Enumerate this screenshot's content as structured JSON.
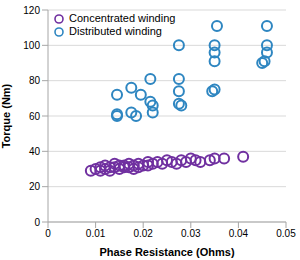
{
  "chart_data": {
    "type": "scatter",
    "x_label": "Phase Resistance (Ohms)",
    "y_label": "Torque (Nm)",
    "xlim": [
      0,
      0.05
    ],
    "xticks": [
      0,
      0.01,
      0.02,
      0.03,
      0.04,
      0.05
    ],
    "ylim": [
      0,
      120
    ],
    "yticks": [
      0,
      20,
      40,
      60,
      80,
      100,
      120
    ],
    "grid": true,
    "legend": "upper left",
    "series": [
      {
        "name": "Concentrated winding",
        "color": "#7030a0",
        "marker": "hollow circle",
        "x": [
          0.009,
          0.01,
          0.011,
          0.011,
          0.012,
          0.012,
          0.013,
          0.013,
          0.014,
          0.014,
          0.015,
          0.015,
          0.016,
          0.016,
          0.017,
          0.017,
          0.018,
          0.018,
          0.019,
          0.019,
          0.02,
          0.021,
          0.021,
          0.022,
          0.023,
          0.024,
          0.025,
          0.026,
          0.027,
          0.028,
          0.029,
          0.03,
          0.031,
          0.032,
          0.034,
          0.035,
          0.037,
          0.041
        ],
        "values": [
          29,
          30,
          29,
          31,
          30,
          32,
          31,
          29,
          31,
          33,
          32,
          30,
          32,
          31,
          33,
          31,
          32,
          30,
          33,
          31,
          32,
          34,
          32,
          33,
          34,
          33,
          35,
          34,
          33,
          35,
          34,
          36,
          35,
          34,
          35,
          36,
          36,
          37
        ]
      },
      {
        "name": "Distributed winding",
        "color": "#2e86c1",
        "marker": "hollow circle",
        "x": [
          0.0145,
          0.0145,
          0.0145,
          0.0175,
          0.0175,
          0.0185,
          0.0195,
          0.0215,
          0.0215,
          0.022,
          0.022,
          0.0275,
          0.0275,
          0.0275,
          0.0275,
          0.028,
          0.0345,
          0.035,
          0.035,
          0.035,
          0.035,
          0.0355,
          0.046,
          0.046,
          0.046,
          0.0455,
          0.045
        ],
        "values": [
          60,
          61,
          72,
          76,
          62,
          60,
          72,
          81,
          68,
          66,
          62,
          100,
          81,
          74,
          67,
          66,
          74,
          75,
          91,
          96,
          100,
          111,
          111,
          100,
          96,
          91,
          90
        ]
      }
    ]
  }
}
